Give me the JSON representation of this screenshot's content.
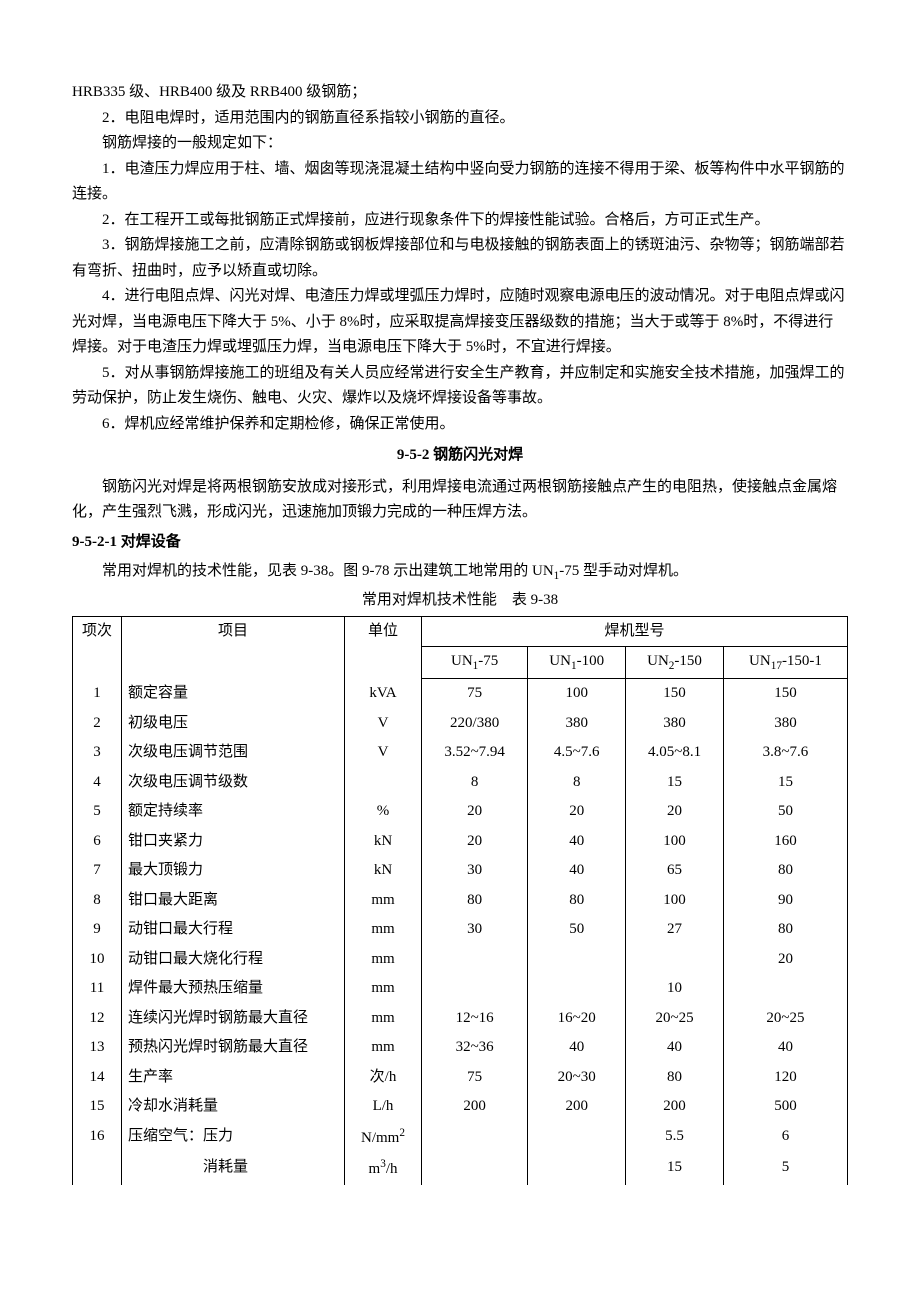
{
  "intro_line": "HRB335 级、HRB400 级及 RRB400 级钢筋；",
  "p2": "2．电阻电焊时，适用范围内的钢筋直径系指较小钢筋的直径。",
  "p_rules_intro": "钢筋焊接的一般规定如下：",
  "r1": "1．电渣压力焊应用于柱、墙、烟囱等现浇混凝土结构中竖向受力钢筋的连接不得用于梁、板等构件中水平钢筋的连接。",
  "r2": "2．在工程开工或每批钢筋正式焊接前，应进行现象条件下的焊接性能试验。合格后，方可正式生产。",
  "r3": "3．钢筋焊接施工之前，应清除钢筋或钢板焊接部位和与电极接触的钢筋表面上的锈斑油污、杂物等；钢筋端部若有弯折、扭曲时，应予以矫直或切除。",
  "r4": "4．进行电阻点焊、闪光对焊、电渣压力焊或埋弧压力焊时，应随时观察电源电压的波动情况。对于电阻点焊或闪光对焊，当电源电压下降大于 5%、小于 8%时，应采取提高焊接变压器级数的措施；当大于或等于 8%时，不得进行焊接。对于电渣压力焊或埋弧压力焊，当电源电压下降大于 5%时，不宜进行焊接。",
  "r5": "5．对从事钢筋焊接施工的班组及有关人员应经常进行安全生产教育，并应制定和实施安全技术措施，加强焊工的劳动保护，防止发生烧伤、触电、火灾、爆炸以及烧坏焊接设备等事故。",
  "r6": "6．焊机应经常维护保养和定期检修，确保正常使用。",
  "section_title": "9-5-2 钢筋闪光对焊",
  "section_p1": "钢筋闪光对焊是将两根钢筋安放成对接形式，利用焊接电流通过两根钢筋接触点产生的电阻热，使接触点金属熔化，产生强烈飞溅，形成闪光，迅速施加顶锻力完成的一种压焊方法。",
  "subsection_title": "9-5-2-1 对焊设备",
  "subsection_p1_a": "常用对焊机的技术性能，见表 9-38。图 9-78 示出建筑工地常用的 UN",
  "subsection_p1_b": "-75 型手动对焊机。",
  "table_caption": "常用对焊机技术性能　表 9-38",
  "table": {
    "header": {
      "idx": "项次",
      "item": "项目",
      "unit": "单位",
      "model_group": "焊机型号",
      "models": [
        "UN₁-75",
        "UN₁-100",
        "UN₂-150",
        "UN₁₇-150-1"
      ]
    },
    "rows": [
      {
        "n": "1",
        "item": "额定容量",
        "unit": "kVA",
        "v": [
          "75",
          "100",
          "150",
          "150"
        ]
      },
      {
        "n": "2",
        "item": "初级电压",
        "unit": "V",
        "v": [
          "220/380",
          "380",
          "380",
          "380"
        ]
      },
      {
        "n": "3",
        "item": "次级电压调节范围",
        "unit": "V",
        "v": [
          "3.52~7.94",
          "4.5~7.6",
          "4.05~8.1",
          "3.8~7.6"
        ]
      },
      {
        "n": "4",
        "item": "次级电压调节级数",
        "unit": "",
        "v": [
          "8",
          "8",
          "15",
          "15"
        ]
      },
      {
        "n": "5",
        "item": "额定持续率",
        "unit": "%",
        "v": [
          "20",
          "20",
          "20",
          "50"
        ]
      },
      {
        "n": "6",
        "item": "钳口夹紧力",
        "unit": "kN",
        "v": [
          "20",
          "40",
          "100",
          "160"
        ]
      },
      {
        "n": "7",
        "item": "最大顶锻力",
        "unit": "kN",
        "v": [
          "30",
          "40",
          "65",
          "80"
        ]
      },
      {
        "n": "8",
        "item": "钳口最大距离",
        "unit": "mm",
        "v": [
          "80",
          "80",
          "100",
          "90"
        ]
      },
      {
        "n": "9",
        "item": "动钳口最大行程",
        "unit": "mm",
        "v": [
          "30",
          "50",
          "27",
          "80"
        ]
      },
      {
        "n": "10",
        "item": "动钳口最大烧化行程",
        "unit": "mm",
        "v": [
          "",
          "",
          "",
          "20"
        ]
      },
      {
        "n": "11",
        "item": "焊件最大预热压缩量",
        "unit": "mm",
        "v": [
          "",
          "",
          "10",
          ""
        ]
      },
      {
        "n": "12",
        "item": "连续闪光焊时钢筋最大直径",
        "unit": "mm",
        "v": [
          "12~16",
          "16~20",
          "20~25",
          "20~25"
        ]
      },
      {
        "n": "13",
        "item": "预热闪光焊时钢筋最大直径",
        "unit": "mm",
        "v": [
          "32~36",
          "40",
          "40",
          "40"
        ]
      },
      {
        "n": "14",
        "item": "生产率",
        "unit": "次/h",
        "v": [
          "75",
          "20~30",
          "80",
          "120"
        ]
      },
      {
        "n": "15",
        "item": "冷却水消耗量",
        "unit": "L/h",
        "v": [
          "200",
          "200",
          "200",
          "500"
        ]
      },
      {
        "n": "16",
        "item": "压缩空气：压力",
        "unit": "N/mm²",
        "v": [
          "",
          "",
          "5.5",
          "6"
        ]
      },
      {
        "n": "",
        "item": "　　　　　消耗量",
        "unit": "m³/h",
        "v": [
          "",
          "",
          "15",
          "5"
        ]
      }
    ]
  }
}
